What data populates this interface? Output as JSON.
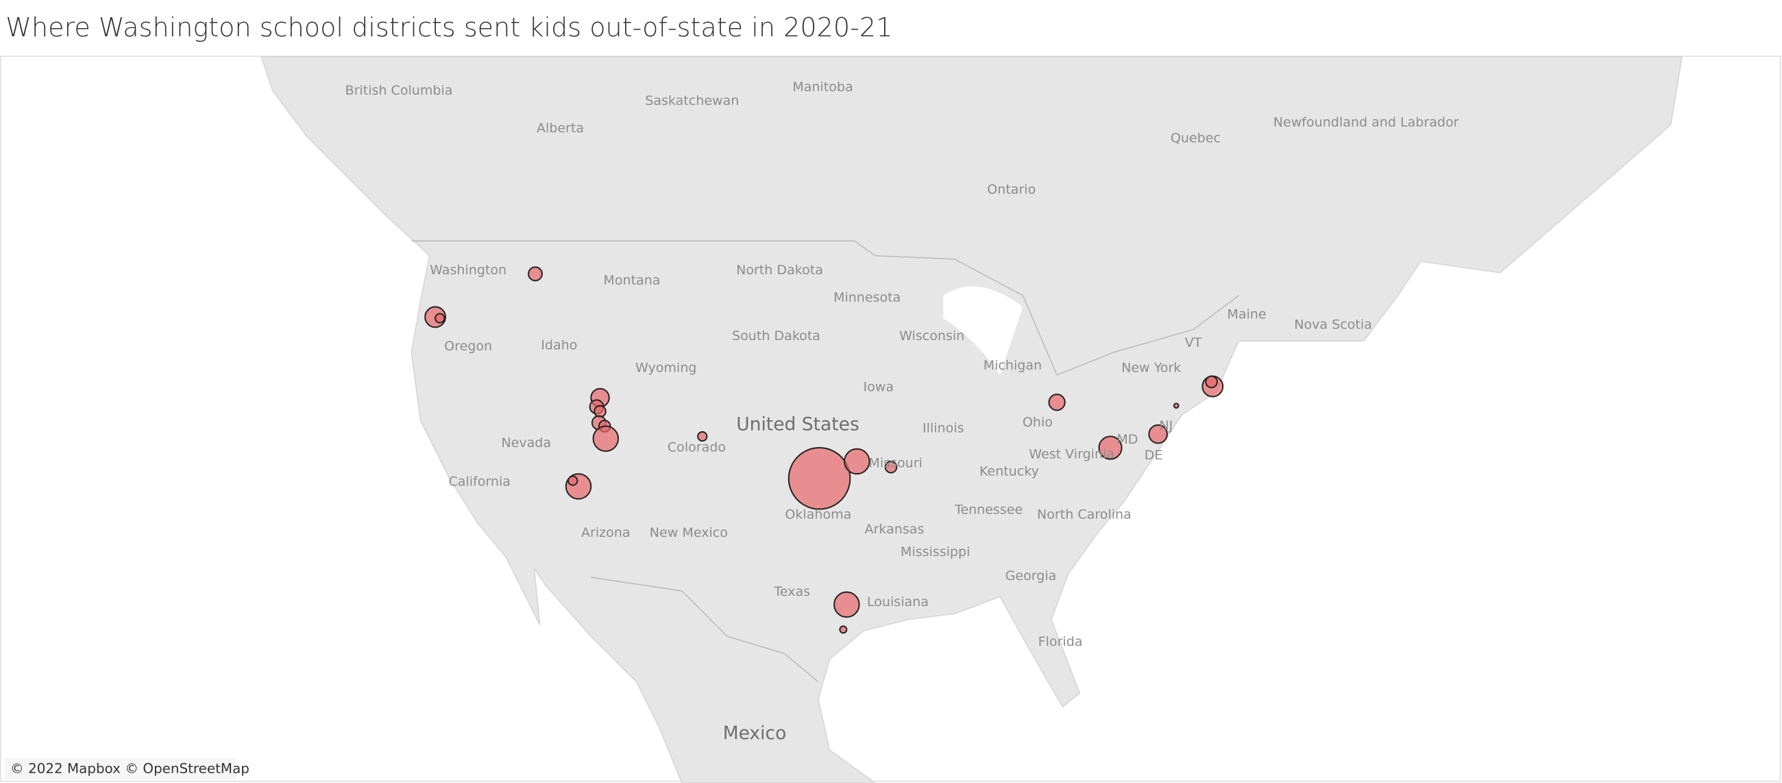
{
  "title": "Where Washington school districts sent kids out-of-state in 2020-21",
  "labels": [
    "British Columbia",
    "Alberta",
    "Saskatchewan",
    "Manitoba",
    "Ontario",
    "Quebec",
    "Newfoundland and Labrador",
    "Washington",
    "Montana",
    "North Dakota",
    "Minnesota",
    "South Dakota",
    "Wisconsin",
    "Michigan",
    "Maine",
    "Nova Scotia",
    "Oregon",
    "Idaho",
    "Wyoming",
    "Iowa",
    "New York",
    "VT",
    "Nevada",
    "Colorado",
    "Illinois",
    "Ohio",
    "West Virginia",
    "MD",
    "NJ",
    "DE",
    "Missouri",
    "California",
    "Kentucky",
    "Oklahoma",
    "Tennessee",
    "North Carolina",
    "Arkansas",
    "Arizona",
    "New Mexico",
    "Mississippi",
    "Georgia",
    "Texas",
    "Louisiana",
    "Florida",
    "Mexico"
  ],
  "country_label": "United States",
  "attribution": "© 2022 Mapbox © OpenStreetMap"
}
